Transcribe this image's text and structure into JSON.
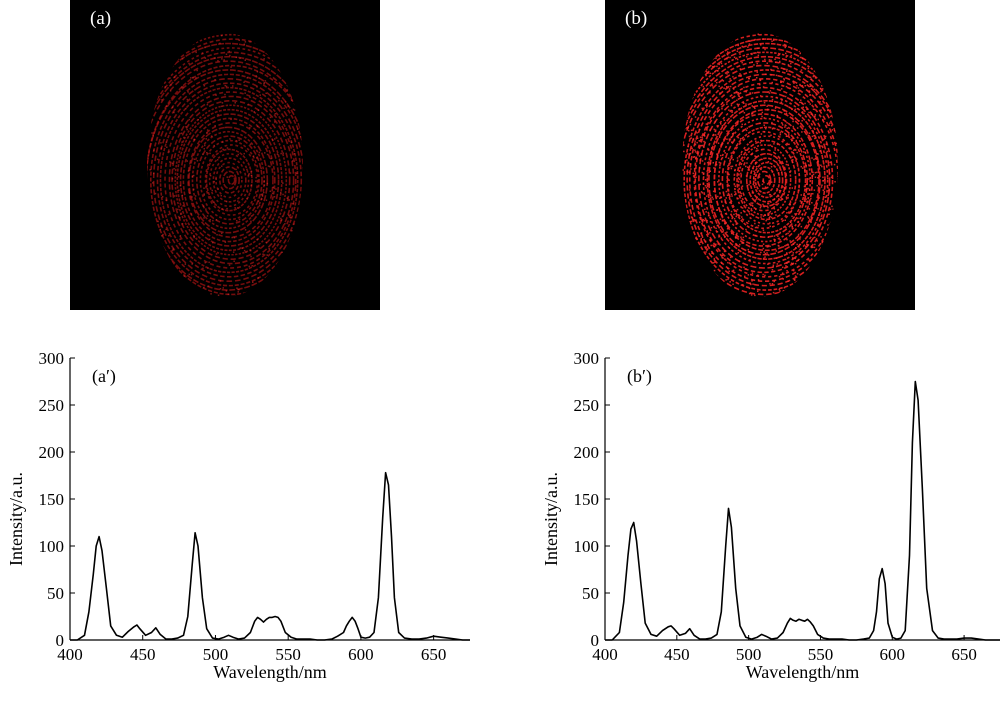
{
  "images": [
    {
      "label": "(a)",
      "description": "Fingerprint (faint red luminescence)",
      "intensity": 0.35,
      "color": "#d01818"
    },
    {
      "label": "(b)",
      "description": "Fingerprint (bright red luminescence)",
      "intensity": 1.0,
      "color": "#e02020"
    }
  ],
  "chart_data": [
    {
      "type": "line",
      "label": "(a′)",
      "xlabel": "Wavelength/nm",
      "ylabel": "Intensity/a.u.",
      "xlim": [
        400,
        675
      ],
      "ylim": [
        0,
        300
      ],
      "xticks": [
        400,
        450,
        500,
        550,
        600,
        650
      ],
      "yticks": [
        0,
        50,
        100,
        150,
        200,
        250,
        300
      ],
      "line_color": "#000000",
      "series": [
        {
          "x": [
            400,
            405,
            410,
            413,
            416,
            418,
            420,
            422,
            425,
            428,
            432,
            436,
            440,
            444,
            446,
            448,
            452,
            456,
            459,
            462,
            466,
            470,
            474,
            478,
            481,
            484,
            486,
            488,
            491,
            494,
            498,
            502,
            506,
            509,
            512,
            516,
            520,
            524,
            527,
            529,
            531,
            533,
            535,
            537,
            539,
            541,
            543,
            545,
            548,
            552,
            556,
            560,
            565,
            570,
            575,
            580,
            584,
            588,
            590,
            592,
            594,
            596,
            598,
            600,
            603,
            606,
            609,
            612,
            615,
            617,
            619,
            621,
            623,
            626,
            630,
            635,
            640,
            645,
            650,
            655,
            660,
            665,
            670,
            675
          ],
          "y": [
            0,
            0,
            5,
            30,
            70,
            100,
            110,
            95,
            55,
            15,
            5,
            3,
            9,
            14,
            16,
            12,
            5,
            8,
            13,
            6,
            1,
            1,
            2,
            5,
            25,
            80,
            114,
            100,
            45,
            12,
            2,
            1,
            3,
            5,
            3,
            1,
            2,
            8,
            20,
            24,
            22,
            19,
            22,
            24,
            24,
            25,
            24,
            20,
            8,
            3,
            1,
            1,
            1,
            0,
            0,
            1,
            4,
            8,
            15,
            20,
            24,
            20,
            12,
            3,
            2,
            3,
            8,
            45,
            130,
            178,
            165,
            110,
            45,
            8,
            2,
            1,
            1,
            2,
            4,
            3,
            2,
            1,
            0,
            0
          ]
        }
      ]
    },
    {
      "type": "line",
      "label": "(b′)",
      "xlabel": "Wavelength/nm",
      "ylabel": "Intensity/a.u.",
      "xlim": [
        400,
        675
      ],
      "ylim": [
        0,
        300
      ],
      "xticks": [
        400,
        450,
        500,
        550,
        600,
        650
      ],
      "yticks": [
        0,
        50,
        100,
        150,
        200,
        250,
        300
      ],
      "line_color": "#000000",
      "series": [
        {
          "x": [
            400,
            405,
            410,
            413,
            416,
            418,
            420,
            422,
            425,
            428,
            432,
            436,
            440,
            444,
            446,
            448,
            452,
            456,
            459,
            462,
            466,
            470,
            474,
            478,
            481,
            484,
            486,
            488,
            491,
            494,
            498,
            502,
            506,
            509,
            512,
            516,
            520,
            524,
            527,
            529,
            531,
            533,
            535,
            537,
            539,
            541,
            543,
            545,
            548,
            552,
            556,
            560,
            565,
            570,
            575,
            580,
            584,
            587,
            589,
            591,
            593,
            595,
            597,
            600,
            603,
            606,
            609,
            612,
            614,
            616,
            618,
            621,
            624,
            628,
            632,
            636,
            640,
            645,
            650,
            655,
            660,
            665,
            670,
            675
          ],
          "y": [
            0,
            0,
            8,
            40,
            90,
            118,
            125,
            105,
            60,
            18,
            6,
            4,
            10,
            14,
            15,
            12,
            5,
            7,
            12,
            5,
            1,
            1,
            2,
            6,
            30,
            100,
            140,
            120,
            55,
            15,
            3,
            1,
            3,
            6,
            4,
            1,
            2,
            8,
            18,
            23,
            21,
            20,
            22,
            21,
            20,
            22,
            19,
            15,
            6,
            2,
            1,
            1,
            1,
            0,
            0,
            1,
            2,
            10,
            30,
            65,
            76,
            60,
            18,
            3,
            1,
            2,
            10,
            90,
            210,
            275,
            255,
            160,
            55,
            10,
            2,
            1,
            1,
            1,
            2,
            2,
            1,
            0,
            0,
            0
          ]
        }
      ]
    }
  ]
}
